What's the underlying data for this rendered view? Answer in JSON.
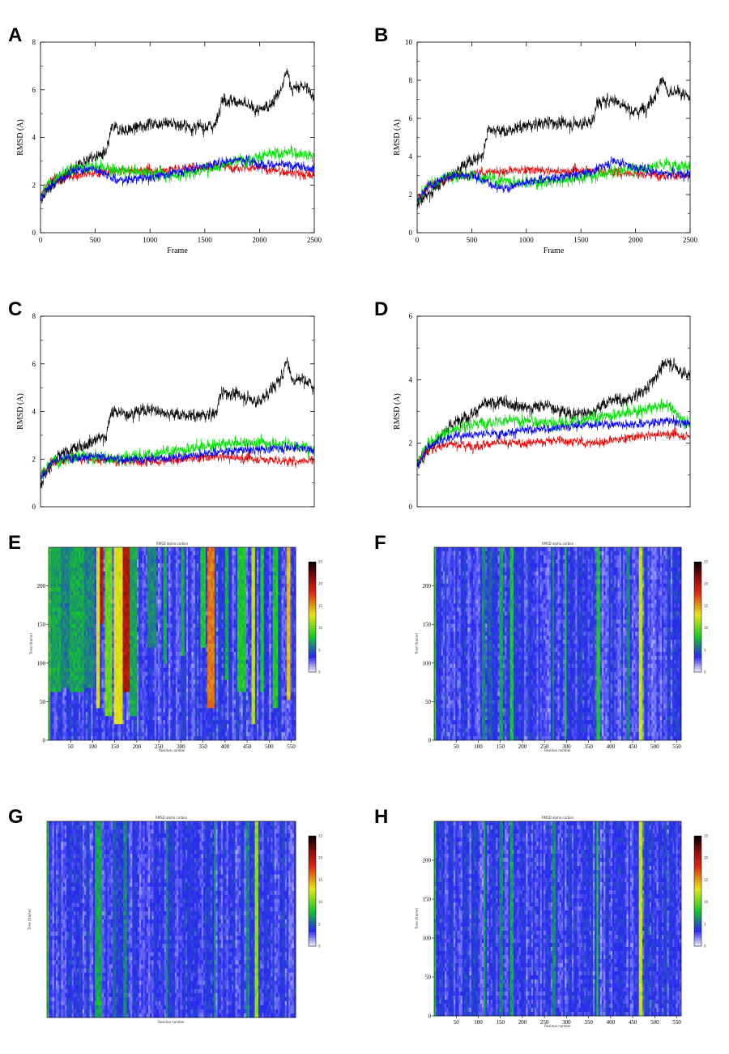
{
  "panel_letters": [
    "A",
    "B",
    "C",
    "D",
    "E",
    "F",
    "G",
    "H"
  ],
  "colors": {
    "series1": "#000000",
    "series2": "#e00000",
    "series3": "#00dd00",
    "series4": "#0000ee"
  },
  "colormap_name": "white-blue-green-yellow-red-black",
  "chart_data": [
    {
      "panel": "A",
      "type": "line",
      "xlabel": "Frame",
      "ylabel": "RMSD (A)",
      "xlim": [
        0,
        2500
      ],
      "ylim": [
        0,
        8
      ],
      "xticks": [
        0,
        500,
        1000,
        1500,
        2000,
        2500
      ],
      "yticks": [
        0,
        2,
        4,
        6,
        8
      ],
      "series": [
        {
          "color": "#000000",
          "x": [
            0,
            100,
            200,
            300,
            400,
            500,
            600,
            650,
            800,
            1000,
            1200,
            1400,
            1600,
            1650,
            1800,
            2000,
            2100,
            2200,
            2250,
            2300,
            2400,
            2500
          ],
          "y": [
            1.3,
            2.0,
            2.3,
            2.7,
            3.0,
            3.2,
            3.3,
            4.4,
            4.3,
            4.6,
            4.6,
            4.4,
            4.5,
            5.6,
            5.5,
            5.1,
            5.4,
            6.0,
            6.8,
            6.0,
            6.2,
            5.7
          ]
        },
        {
          "color": "#e00000",
          "x": [
            0,
            100,
            300,
            500,
            700,
            1000,
            1300,
            1600,
            2000,
            2300,
            2500
          ],
          "y": [
            1.6,
            2.2,
            2.4,
            2.5,
            2.6,
            2.6,
            2.7,
            2.8,
            2.7,
            2.5,
            2.4
          ]
        },
        {
          "color": "#00dd00",
          "x": [
            0,
            100,
            300,
            500,
            700,
            1000,
            1300,
            1600,
            2000,
            2300,
            2500
          ],
          "y": [
            1.6,
            2.2,
            2.7,
            2.8,
            2.6,
            2.5,
            2.4,
            2.8,
            3.2,
            3.4,
            3.2
          ]
        },
        {
          "color": "#0000ee",
          "x": [
            0,
            100,
            300,
            500,
            700,
            1000,
            1300,
            1600,
            1800,
            2000,
            2300,
            2500
          ],
          "y": [
            1.5,
            2.0,
            2.6,
            2.7,
            2.2,
            2.3,
            2.6,
            2.9,
            3.1,
            2.9,
            2.8,
            2.7
          ]
        }
      ]
    },
    {
      "panel": "B",
      "type": "line",
      "xlabel": "Frame",
      "ylabel": "RMSD (A)",
      "xlim": [
        0,
        2500
      ],
      "ylim": [
        0,
        10
      ],
      "xticks": [
        0,
        500,
        1000,
        1500,
        2000,
        2500
      ],
      "yticks": [
        0,
        2,
        4,
        6,
        8,
        10
      ],
      "series": [
        {
          "color": "#000000",
          "x": [
            0,
            100,
            200,
            300,
            400,
            500,
            600,
            650,
            800,
            1000,
            1200,
            1400,
            1600,
            1650,
            1800,
            2000,
            2100,
            2200,
            2250,
            2300,
            2400,
            2500
          ],
          "y": [
            1.5,
            2.0,
            2.5,
            3.0,
            3.4,
            3.8,
            4.0,
            5.5,
            5.3,
            5.6,
            5.8,
            5.7,
            5.8,
            6.8,
            7.0,
            6.3,
            6.6,
            7.4,
            8.2,
            7.2,
            7.4,
            7.0
          ]
        },
        {
          "color": "#e00000",
          "x": [
            0,
            100,
            300,
            500,
            700,
            1000,
            1300,
            1600,
            2000,
            2300,
            2500
          ],
          "y": [
            1.7,
            2.5,
            2.9,
            3.1,
            3.2,
            3.3,
            3.2,
            3.3,
            3.1,
            3.0,
            2.9
          ]
        },
        {
          "color": "#00dd00",
          "x": [
            0,
            100,
            300,
            500,
            700,
            1000,
            1300,
            1600,
            2000,
            2300,
            2500
          ],
          "y": [
            1.7,
            2.5,
            3.0,
            3.0,
            2.8,
            2.6,
            2.7,
            3.0,
            3.4,
            3.6,
            3.5
          ]
        },
        {
          "color": "#0000ee",
          "x": [
            0,
            100,
            300,
            500,
            700,
            800,
            1000,
            1300,
            1600,
            1800,
            2000,
            2300,
            2500
          ],
          "y": [
            1.6,
            2.4,
            3.0,
            3.0,
            2.5,
            2.3,
            2.7,
            2.9,
            3.2,
            3.8,
            3.4,
            3.1,
            3.1
          ]
        }
      ]
    },
    {
      "panel": "C",
      "type": "line",
      "xlabel": "",
      "ylabel": "RMSD (A)",
      "xlim": [
        0,
        2500
      ],
      "ylim": [
        0,
        8
      ],
      "xticks": [],
      "yticks": [
        0,
        2,
        4,
        6,
        8
      ],
      "series": [
        {
          "color": "#000000",
          "x": [
            0,
            100,
            200,
            300,
            400,
            500,
            600,
            650,
            800,
            1000,
            1200,
            1400,
            1600,
            1650,
            1800,
            2000,
            2100,
            2200,
            2250,
            2300,
            2400,
            2500
          ],
          "y": [
            1.0,
            1.8,
            2.2,
            2.4,
            2.6,
            2.8,
            3.0,
            4.0,
            3.9,
            4.1,
            3.9,
            3.8,
            3.9,
            4.8,
            4.7,
            4.4,
            4.9,
            5.4,
            6.2,
            5.3,
            5.4,
            5.0
          ]
        },
        {
          "color": "#e00000",
          "x": [
            0,
            100,
            300,
            500,
            700,
            1000,
            1300,
            1600,
            2000,
            2300,
            2500
          ],
          "y": [
            1.3,
            1.9,
            2.0,
            2.0,
            1.9,
            1.9,
            2.0,
            2.1,
            2.0,
            1.9,
            2.0
          ]
        },
        {
          "color": "#00dd00",
          "x": [
            0,
            100,
            300,
            500,
            700,
            1000,
            1300,
            1600,
            2000,
            2300,
            2500
          ],
          "y": [
            1.3,
            1.9,
            2.1,
            2.1,
            2.0,
            2.2,
            2.4,
            2.6,
            2.7,
            2.6,
            2.4
          ]
        },
        {
          "color": "#0000ee",
          "x": [
            0,
            100,
            300,
            500,
            700,
            1000,
            1300,
            1600,
            2000,
            2300,
            2500
          ],
          "y": [
            1.2,
            1.9,
            2.1,
            2.1,
            2.0,
            2.0,
            2.1,
            2.3,
            2.4,
            2.5,
            2.4
          ]
        }
      ]
    },
    {
      "panel": "D",
      "type": "line",
      "xlabel": "",
      "ylabel": "RMSD (A)",
      "xlim": [
        0,
        2500
      ],
      "ylim": [
        0,
        6
      ],
      "xticks": [],
      "yticks": [
        0,
        2,
        4,
        6
      ],
      "series": [
        {
          "color": "#000000",
          "x": [
            0,
            100,
            200,
            300,
            400,
            500,
            600,
            800,
            1000,
            1200,
            1400,
            1600,
            1800,
            1900,
            2000,
            2100,
            2200,
            2300,
            2400,
            2500
          ],
          "y": [
            1.3,
            1.8,
            2.2,
            2.5,
            2.8,
            2.9,
            3.2,
            3.3,
            3.1,
            3.2,
            2.9,
            3.0,
            3.4,
            3.3,
            3.5,
            3.7,
            4.2,
            4.6,
            4.3,
            4.1
          ]
        },
        {
          "color": "#e00000",
          "x": [
            0,
            100,
            300,
            500,
            700,
            1000,
            1300,
            1600,
            2000,
            2300,
            2500
          ],
          "y": [
            1.4,
            1.8,
            2.0,
            1.9,
            2.0,
            2.0,
            2.1,
            2.0,
            2.2,
            2.3,
            2.2
          ]
        },
        {
          "color": "#00dd00",
          "x": [
            0,
            100,
            300,
            500,
            700,
            1000,
            1300,
            1600,
            2000,
            2300,
            2500
          ],
          "y": [
            1.4,
            2.0,
            2.4,
            2.6,
            2.7,
            2.7,
            2.6,
            2.8,
            3.0,
            3.2,
            2.5
          ]
        },
        {
          "color": "#0000ee",
          "x": [
            0,
            100,
            300,
            500,
            700,
            1000,
            1300,
            1600,
            2000,
            2300,
            2500
          ],
          "y": [
            1.3,
            1.9,
            2.2,
            2.3,
            2.3,
            2.4,
            2.5,
            2.6,
            2.6,
            2.7,
            2.6
          ]
        }
      ]
    },
    {
      "panel": "E",
      "type": "heatmap",
      "title": "RMSD alpha carbon",
      "xlabel": "Residue number",
      "ylabel": "Time (frame)",
      "xlim": [
        0,
        560
      ],
      "ylim": [
        0,
        250
      ],
      "xticks": [
        50,
        100,
        150,
        200,
        250,
        300,
        350,
        400,
        450,
        500,
        550
      ],
      "yticks": [
        0,
        50,
        100,
        150,
        200
      ],
      "colorbar_range": [
        0,
        25
      ],
      "colorbar_ticks": [
        "25",
        "20",
        "15",
        "10",
        "5",
        "0"
      ],
      "bands": [
        {
          "x0": 0,
          "x1": 5,
          "v": 9
        },
        {
          "x0": 5,
          "x1": 30,
          "v": 7,
          "start": 60
        },
        {
          "x0": 30,
          "x1": 50,
          "v": 6,
          "start": 70
        },
        {
          "x0": 50,
          "x1": 80,
          "v": 7,
          "start": 60
        },
        {
          "x0": 80,
          "x1": 105,
          "v": 6,
          "start": 70
        },
        {
          "x0": 110,
          "x1": 118,
          "v": 13,
          "start": 40
        },
        {
          "x0": 118,
          "x1": 125,
          "v": 20,
          "start": 150
        },
        {
          "x0": 128,
          "x1": 145,
          "v": 10,
          "start": 30
        },
        {
          "x0": 150,
          "x1": 170,
          "v": 13,
          "start": 20
        },
        {
          "x0": 170,
          "x1": 185,
          "v": 20,
          "start": 60
        },
        {
          "x0": 185,
          "x1": 200,
          "v": 7,
          "start": 30
        },
        {
          "x0": 225,
          "x1": 245,
          "v": 6,
          "start": 120
        },
        {
          "x0": 260,
          "x1": 270,
          "v": 7,
          "start": 100
        },
        {
          "x0": 300,
          "x1": 310,
          "v": 7,
          "start": 110
        },
        {
          "x0": 345,
          "x1": 355,
          "v": 8,
          "start": 120
        },
        {
          "x0": 360,
          "x1": 375,
          "v": 16,
          "start": 40
        },
        {
          "x0": 400,
          "x1": 410,
          "v": 7,
          "start": 80
        },
        {
          "x0": 430,
          "x1": 450,
          "v": 8,
          "start": 60
        },
        {
          "x0": 462,
          "x1": 470,
          "v": 12,
          "start": 20
        },
        {
          "x0": 480,
          "x1": 490,
          "v": 8,
          "start": 60
        },
        {
          "x0": 510,
          "x1": 520,
          "v": 8,
          "start": 40
        },
        {
          "x0": 540,
          "x1": 550,
          "v": 14,
          "start": 50
        }
      ]
    },
    {
      "panel": "F",
      "type": "heatmap",
      "title": "RMSD alpha carbon",
      "xlabel": "Residue number",
      "ylabel": "Time (frame)",
      "xlim": [
        0,
        560
      ],
      "ylim": [
        0,
        250
      ],
      "xticks": [
        50,
        100,
        150,
        200,
        250,
        300,
        350,
        400,
        450,
        500,
        550
      ],
      "yticks": [
        0,
        50,
        100,
        150,
        200
      ],
      "colorbar_range": [
        0,
        25
      ],
      "colorbar_ticks": [
        "25",
        "20",
        "15",
        "10",
        "5",
        "0"
      ],
      "bands": [
        {
          "x0": 0,
          "x1": 5,
          "v": 9
        },
        {
          "x0": 110,
          "x1": 118,
          "v": 6
        },
        {
          "x0": 125,
          "x1": 132,
          "v": 5
        },
        {
          "x0": 150,
          "x1": 158,
          "v": 7
        },
        {
          "x0": 172,
          "x1": 180,
          "v": 8
        },
        {
          "x0": 268,
          "x1": 274,
          "v": 6
        },
        {
          "x0": 295,
          "x1": 300,
          "v": 8
        },
        {
          "x0": 368,
          "x1": 375,
          "v": 8
        },
        {
          "x0": 438,
          "x1": 444,
          "v": 6
        },
        {
          "x0": 465,
          "x1": 471,
          "v": 12
        }
      ]
    },
    {
      "panel": "G",
      "type": "heatmap",
      "title": "RMSD alpha carbon",
      "xlabel": "Residue number",
      "ylabel": "Time (frame)",
      "xlim": [
        0,
        560
      ],
      "ylim": [
        0,
        250
      ],
      "xticks": [],
      "yticks": [],
      "colorbar_range": [
        0,
        25
      ],
      "colorbar_ticks": [
        "25",
        "20",
        "15",
        "10",
        "5",
        "0"
      ],
      "bands": [
        {
          "x0": 0,
          "x1": 5,
          "v": 9
        },
        {
          "x0": 110,
          "x1": 125,
          "v": 7
        },
        {
          "x0": 150,
          "x1": 158,
          "v": 5
        },
        {
          "x0": 172,
          "x1": 180,
          "v": 6
        },
        {
          "x0": 268,
          "x1": 274,
          "v": 6
        },
        {
          "x0": 375,
          "x1": 381,
          "v": 6
        },
        {
          "x0": 450,
          "x1": 458,
          "v": 6
        },
        {
          "x0": 468,
          "x1": 476,
          "v": 11
        }
      ]
    },
    {
      "panel": "H",
      "type": "heatmap",
      "title": "RMSD alpha carbon",
      "xlabel": "Residue number",
      "ylabel": "Time (frame)",
      "xlim": [
        0,
        560
      ],
      "ylim": [
        0,
        250
      ],
      "xticks": [
        50,
        100,
        150,
        200,
        250,
        300,
        350,
        400,
        450,
        500,
        550
      ],
      "yticks": [
        0,
        50,
        100,
        150,
        200
      ],
      "colorbar_range": [
        0,
        25
      ],
      "colorbar_ticks": [
        "25",
        "20",
        "15",
        "10",
        "5",
        "0"
      ],
      "bands": [
        {
          "x0": 0,
          "x1": 4,
          "v": 8
        },
        {
          "x0": 112,
          "x1": 118,
          "v": 7
        },
        {
          "x0": 150,
          "x1": 156,
          "v": 6
        },
        {
          "x0": 172,
          "x1": 180,
          "v": 7
        },
        {
          "x0": 270,
          "x1": 276,
          "v": 6
        },
        {
          "x0": 368,
          "x1": 374,
          "v": 8
        },
        {
          "x0": 465,
          "x1": 471,
          "v": 12
        }
      ]
    }
  ]
}
